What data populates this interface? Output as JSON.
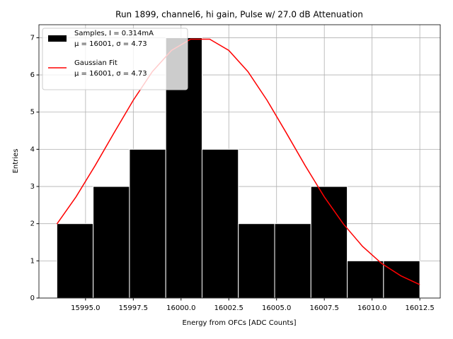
{
  "chart_data": {
    "type": "histogram",
    "title": "Run 1899, channel6, hi gain, Pulse w/ 27.0 dB Attenuation",
    "xlabel": "Energy from OFCs [ADC Counts]",
    "ylabel": "Entries",
    "bins": [
      15993.5,
      15995.4,
      15997.3,
      15999.2,
      16001.1,
      16003.0,
      16004.9,
      16006.8,
      16008.7,
      16010.6,
      16012.5
    ],
    "values": [
      2,
      3,
      4,
      7,
      4,
      2,
      2,
      3,
      1,
      1
    ],
    "name": "Samples, I = 0.314mA\nμ = 16001, σ = 4.73",
    "color": "#000000",
    "fit": {
      "name": "Gaussian Fit\nμ = 16001, σ = 4.73",
      "color": "#ff0000",
      "x": [
        15993.5,
        15994.5,
        15995.5,
        15996.5,
        15997.5,
        15998.5,
        15999.5,
        16000.5,
        16001.5,
        16002.5,
        16003.5,
        16004.5,
        16005.5,
        16006.5,
        16007.5,
        16008.5,
        16009.5,
        16010.5,
        16011.5,
        16012.5
      ],
      "values": [
        1.99,
        2.72,
        3.56,
        4.45,
        5.32,
        6.09,
        6.66,
        6.96,
        6.96,
        6.66,
        6.09,
        5.32,
        4.45,
        3.56,
        2.72,
        1.99,
        1.39,
        0.93,
        0.6,
        0.36
      ]
    },
    "xlim": [
      15992.56,
      16013.57
    ],
    "ylim": [
      0,
      7.35
    ],
    "xticks": [
      {
        "value": 15995,
        "label": "15995.0"
      },
      {
        "value": 15997.5,
        "label": "15997.5"
      },
      {
        "value": 16000,
        "label": "16000.0"
      },
      {
        "value": 16002.5,
        "label": "16002.5"
      },
      {
        "value": 16005,
        "label": "16005.0"
      },
      {
        "value": 16007.5,
        "label": "16007.5"
      },
      {
        "value": 16010,
        "label": "16010.0"
      },
      {
        "value": 16012.5,
        "label": "16012.5"
      }
    ],
    "yticks": [
      0,
      1,
      2,
      3,
      4,
      5,
      6,
      7
    ],
    "grid": true,
    "legend": "upper left"
  }
}
